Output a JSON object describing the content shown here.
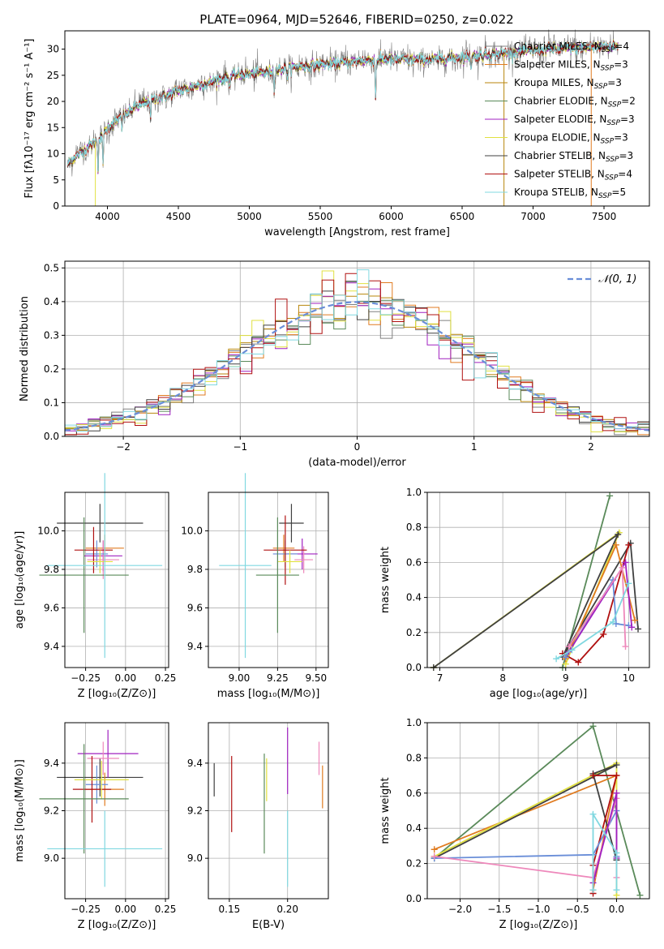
{
  "chart_data": [
    {
      "id": "spectrum",
      "type": "line",
      "title": "PLATE=0964, MJD=52646, FIBERID=0250, z=0.022",
      "xlabel": "wavelength [Angstrom, rest frame]",
      "ylabel": "Flux [fλ10⁻¹⁷ erg cm⁻² s⁻¹ A⁻¹]",
      "xlim": [
        3700,
        7820
      ],
      "ylim": [
        0,
        33.5
      ],
      "xticks": [
        4000,
        4500,
        5000,
        5500,
        6000,
        6500,
        7000,
        7500
      ],
      "yticks": [
        0,
        5,
        10,
        15,
        20,
        25,
        30
      ],
      "grid": false,
      "legend_position": "top-right",
      "continuum": [
        [
          3720,
          8
        ],
        [
          3800,
          10
        ],
        [
          3900,
          12
        ],
        [
          3960,
          13
        ],
        [
          4000,
          15
        ],
        [
          4100,
          17
        ],
        [
          4200,
          19
        ],
        [
          4300,
          20
        ],
        [
          4400,
          21
        ],
        [
          4500,
          22
        ],
        [
          4700,
          23.5
        ],
        [
          4900,
          25
        ],
        [
          5100,
          25.5
        ],
        [
          5300,
          26.5
        ],
        [
          5500,
          27
        ],
        [
          5700,
          27.5
        ],
        [
          5900,
          28
        ],
        [
          6100,
          28
        ],
        [
          6300,
          28
        ],
        [
          6500,
          28.5
        ],
        [
          6700,
          29
        ],
        [
          6900,
          29.5
        ],
        [
          7100,
          30
        ],
        [
          7300,
          30.2
        ],
        [
          7500,
          30.5
        ],
        [
          7600,
          30.5
        ]
      ],
      "series": [
        {
          "name": "Chabrier MILES, N_SSP=4",
          "label": "Chabrier MILES, N",
          "nssp": 4,
          "color": "#808080"
        },
        {
          "name": "Salpeter MILES, N_SSP=3",
          "label": "Salpeter MILES, N",
          "nssp": 3,
          "color": "#e07b20"
        },
        {
          "name": "Kroupa MILES, N_SSP=3",
          "label": "Kroupa MILES, N",
          "nssp": 3,
          "color": "#b8860b"
        },
        {
          "name": "Chabrier ELODIE, N_SSP=2",
          "label": "Chabrier ELODIE, N",
          "nssp": 2,
          "color": "#5a8a5a"
        },
        {
          "name": "Salpeter ELODIE, N_SSP=3",
          "label": "Salpeter ELODIE, N",
          "nssp": 3,
          "color": "#a020c0"
        },
        {
          "name": "Kroupa ELODIE, N_SSP=3",
          "label": "Kroupa ELODIE, N",
          "nssp": 3,
          "color": "#e0e040"
        },
        {
          "name": "Chabrier STELIB, N_SSP=3",
          "label": "Chabrier STELIB, N",
          "nssp": 3,
          "color": "#404040"
        },
        {
          "name": "Salpeter STELIB, N_SSP=4",
          "label": "Salpeter STELIB, N",
          "nssp": 4,
          "color": "#b01010"
        },
        {
          "name": "Kroupa STELIB, N_SSP=5",
          "label": "Kroupa STELIB, N",
          "nssp": 5,
          "color": "#80d8e0"
        }
      ],
      "legend_suffix": "SSP"
    },
    {
      "id": "residuals",
      "type": "line",
      "xlabel": "(data-model)/error",
      "ylabel": "Normed distribution",
      "xlim": [
        -2.5,
        2.5
      ],
      "ylim": [
        0,
        0.52
      ],
      "xticks": [
        -2,
        -1,
        0,
        1,
        2
      ],
      "yticks": [
        0.0,
        0.1,
        0.2,
        0.3,
        0.4,
        0.5
      ],
      "grid": true,
      "legend_position": "top-right",
      "legend": "𝒩(0, 1)",
      "bin_width": 0.1,
      "gauss_color": "#6a8ed8"
    },
    {
      "id": "age-vs-Z",
      "type": "scatter",
      "xlabel": "Z [log₁₀(Z/Z⊙)]",
      "ylabel": "age  [log₁₀(age/yr)]",
      "xlim": [
        -0.38,
        0.27
      ],
      "ylim": [
        9.29,
        10.2
      ],
      "xticks": [
        -0.25,
        0.0,
        0.25
      ],
      "yticks": [
        9.4,
        9.6,
        9.8,
        10.0
      ],
      "grid": true,
      "points": [
        {
          "x": -0.16,
          "y": 10.04,
          "xerr": 0.27,
          "yerr": 0.1,
          "color": "#404040"
        },
        {
          "x": -0.13,
          "y": 9.91,
          "xerr": 0.12,
          "yerr": 0.07,
          "color": "#e07b20"
        },
        {
          "x": -0.14,
          "y": 9.87,
          "xerr": 0.12,
          "yerr": 0.08,
          "color": "#a020c0"
        },
        {
          "x": -0.14,
          "y": 9.85,
          "xerr": 0.1,
          "yerr": 0.1,
          "color": "#ee88bb"
        },
        {
          "x": -0.18,
          "y": 9.88,
          "xerr": 0.07,
          "yerr": 0.07,
          "color": "#6a8ed8"
        },
        {
          "x": -0.2,
          "y": 9.9,
          "xerr": 0.12,
          "yerr": 0.12,
          "color": "#b01010"
        },
        {
          "x": -0.16,
          "y": 9.84,
          "xerr": 0.08,
          "yerr": 0.06,
          "color": "#e0e040"
        },
        {
          "x": -0.26,
          "y": 9.77,
          "xerr": 0.28,
          "yerr": 0.3,
          "color": "#5a8a5a"
        },
        {
          "x": -0.13,
          "y": 9.82,
          "xerr": 0.36,
          "yerr": 0.48,
          "color": "#80d8e0"
        }
      ]
    },
    {
      "id": "age-vs-mass",
      "type": "scatter",
      "xlabel": "mass [log₁₀(M/M⊙)]",
      "ylabel": "",
      "xlim": [
        8.8,
        9.58
      ],
      "ylim": [
        9.29,
        10.2
      ],
      "xticks": [
        9.0,
        9.25,
        9.5
      ],
      "yticks": [
        9.4,
        9.6,
        9.8,
        10.0
      ],
      "grid": true,
      "points": [
        {
          "x": 9.34,
          "y": 10.04,
          "xerr": 0.08,
          "yerr": 0.1,
          "color": "#404040"
        },
        {
          "x": 9.29,
          "y": 9.91,
          "xerr": 0.07,
          "yerr": 0.07,
          "color": "#e07b20"
        },
        {
          "x": 9.41,
          "y": 9.88,
          "xerr": 0.1,
          "yerr": 0.08,
          "color": "#a020c0"
        },
        {
          "x": 9.42,
          "y": 9.85,
          "xerr": 0.06,
          "yerr": 0.07,
          "color": "#ee88bb"
        },
        {
          "x": 9.3,
          "y": 9.88,
          "xerr": 0.08,
          "yerr": 0.07,
          "color": "#6a8ed8"
        },
        {
          "x": 9.3,
          "y": 9.9,
          "xerr": 0.14,
          "yerr": 0.18,
          "color": "#b01010"
        },
        {
          "x": 9.33,
          "y": 9.84,
          "xerr": 0.08,
          "yerr": 0.06,
          "color": "#e0e040"
        },
        {
          "x": 9.25,
          "y": 9.77,
          "xerr": 0.14,
          "yerr": 0.3,
          "color": "#5a8a5a"
        },
        {
          "x": 9.04,
          "y": 9.82,
          "xerr": 0.17,
          "yerr": 0.48,
          "color": "#80d8e0"
        }
      ]
    },
    {
      "id": "weight-vs-age",
      "type": "line",
      "xlabel": "age  [log₁₀(age/yr)]",
      "ylabel": "mass weight",
      "xlim": [
        6.8,
        10.33
      ],
      "ylim": [
        0,
        1.0
      ],
      "xticks": [
        7,
        8,
        9,
        10
      ],
      "yticks": [
        0.0,
        0.2,
        0.4,
        0.6,
        0.8,
        1.0
      ],
      "grid": true,
      "series": [
        {
          "color": "#5a8a5a",
          "points": [
            [
              8.95,
              0.0
            ],
            [
              9.7,
              0.98
            ]
          ]
        },
        {
          "color": "#e0e040",
          "points": [
            [
              6.9,
              0.0
            ],
            [
              9.85,
              0.77
            ],
            [
              9.0,
              0.02
            ]
          ]
        },
        {
          "color": "#404040",
          "points": [
            [
              6.9,
              0.0
            ],
            [
              9.83,
              0.76
            ],
            [
              8.95,
              0.06
            ],
            [
              10.03,
              0.71
            ],
            [
              10.15,
              0.22
            ]
          ]
        },
        {
          "color": "#e07b20",
          "points": [
            [
              9.0,
              0.05
            ],
            [
              9.8,
              0.7
            ],
            [
              10.1,
              0.27
            ]
          ]
        },
        {
          "color": "#b01010",
          "points": [
            [
              8.95,
              0.08
            ],
            [
              9.2,
              0.03
            ],
            [
              9.6,
              0.19
            ],
            [
              10.0,
              0.7
            ]
          ]
        },
        {
          "color": "#6a8ed8",
          "points": [
            [
              9.0,
              0.06
            ],
            [
              9.75,
              0.5
            ],
            [
              9.8,
              0.25
            ],
            [
              10.0,
              0.24
            ]
          ]
        },
        {
          "color": "#a020c0",
          "points": [
            [
              9.05,
              0.09
            ],
            [
              9.95,
              0.6
            ],
            [
              10.05,
              0.23
            ]
          ]
        },
        {
          "color": "#ee88bb",
          "points": [
            [
              9.05,
              0.12
            ],
            [
              9.9,
              0.57
            ],
            [
              9.95,
              0.12
            ]
          ]
        },
        {
          "color": "#80d8e0",
          "points": [
            [
              8.85,
              0.05
            ],
            [
              9.1,
              0.1
            ],
            [
              9.75,
              0.26
            ],
            [
              10.0,
              0.48
            ]
          ]
        }
      ]
    },
    {
      "id": "mass-vs-Z",
      "type": "scatter",
      "xlabel": "Z [log₁₀(Z/Z⊙)]",
      "ylabel": "mass [log₁₀(M/M⊙)]",
      "xlim": [
        -0.38,
        0.27
      ],
      "ylim": [
        8.83,
        9.57
      ],
      "xticks": [
        -0.25,
        0.0,
        0.25
      ],
      "yticks": [
        9.0,
        9.2,
        9.4
      ],
      "grid": true,
      "points": [
        {
          "x": -0.16,
          "y": 9.34,
          "xerr": 0.27,
          "yerr": 0.08,
          "color": "#404040"
        },
        {
          "x": -0.13,
          "y": 9.29,
          "xerr": 0.12,
          "yerr": 0.07,
          "color": "#e07b20"
        },
        {
          "x": -0.11,
          "y": 9.44,
          "xerr": 0.19,
          "yerr": 0.1,
          "color": "#a020c0"
        },
        {
          "x": -0.14,
          "y": 9.42,
          "xerr": 0.1,
          "yerr": 0.07,
          "color": "#ee88bb"
        },
        {
          "x": -0.18,
          "y": 9.31,
          "xerr": 0.07,
          "yerr": 0.08,
          "color": "#6a8ed8"
        },
        {
          "x": -0.21,
          "y": 9.29,
          "xerr": 0.12,
          "yerr": 0.14,
          "color": "#b01010"
        },
        {
          "x": -0.15,
          "y": 9.33,
          "xerr": 0.17,
          "yerr": 0.08,
          "color": "#e0e040"
        },
        {
          "x": -0.26,
          "y": 9.25,
          "xerr": 0.28,
          "yerr": 0.23,
          "color": "#5a8a5a"
        },
        {
          "x": -0.13,
          "y": 9.04,
          "xerr": 0.36,
          "yerr": 0.16,
          "color": "#80d8e0"
        }
      ]
    },
    {
      "id": "mass-vs-EBV",
      "type": "scatter",
      "xlabel": "E(B-V)",
      "ylabel": "",
      "xlim": [
        0.132,
        0.235
      ],
      "ylim": [
        8.83,
        9.57
      ],
      "xticks": [
        0.15,
        0.2
      ],
      "yticks": [
        9.0,
        9.2,
        9.4
      ],
      "grid": true,
      "points": [
        {
          "x": 0.137,
          "y": 9.33,
          "xerr": 0,
          "yerr": 0.07,
          "color": "#404040"
        },
        {
          "x": 0.152,
          "y": 9.27,
          "xerr": 0,
          "yerr": 0.16,
          "color": "#b01010"
        },
        {
          "x": 0.18,
          "y": 9.23,
          "xerr": 0,
          "yerr": 0.21,
          "color": "#5a8a5a"
        },
        {
          "x": 0.182,
          "y": 9.33,
          "xerr": 0,
          "yerr": 0.09,
          "color": "#e0e040"
        },
        {
          "x": 0.2,
          "y": 9.41,
          "xerr": 0,
          "yerr": 0.14,
          "color": "#a020c0"
        },
        {
          "x": 0.2,
          "y": 9.04,
          "xerr": 0,
          "yerr": 0.16,
          "color": "#80d8e0"
        },
        {
          "x": 0.227,
          "y": 9.42,
          "xerr": 0,
          "yerr": 0.07,
          "color": "#ee88bb"
        },
        {
          "x": 0.23,
          "y": 9.3,
          "xerr": 0,
          "yerr": 0.09,
          "color": "#e07b20"
        }
      ]
    },
    {
      "id": "weight-vs-Z",
      "type": "line",
      "xlabel": "Z [log₁₀(Z/Z⊙)]",
      "ylabel": "mass weight",
      "xlim": [
        -2.42,
        0.42
      ],
      "ylim": [
        0,
        1.0
      ],
      "xticks": [
        -2.0,
        -1.5,
        -1.0,
        -0.5,
        0.0
      ],
      "yticks": [
        0.0,
        0.2,
        0.4,
        0.6,
        0.8,
        1.0
      ],
      "grid": true,
      "series": [
        {
          "color": "#5a8a5a",
          "points": [
            [
              -2.33,
              0.23
            ],
            [
              -0.3,
              0.98
            ],
            [
              0.3,
              0.02
            ]
          ]
        },
        {
          "color": "#e07b20",
          "points": [
            [
              -2.33,
              0.28
            ],
            [
              0.0,
              0.7
            ],
            [
              -0.3,
              0.05
            ]
          ]
        },
        {
          "color": "#e0e040",
          "points": [
            [
              -2.33,
              0.24
            ],
            [
              0.0,
              0.77
            ],
            [
              0.0,
              0.02
            ]
          ]
        },
        {
          "color": "#404040",
          "points": [
            [
              -2.33,
              0.23
            ],
            [
              0.0,
              0.76
            ],
            [
              -0.3,
              0.71
            ],
            [
              0.0,
              0.22
            ]
          ]
        },
        {
          "color": "#b01010",
          "points": [
            [
              -0.3,
              0.03
            ],
            [
              -0.3,
              0.19
            ],
            [
              0.0,
              0.7
            ],
            [
              -0.3,
              0.7
            ]
          ]
        },
        {
          "color": "#6a8ed8",
          "points": [
            [
              -2.33,
              0.23
            ],
            [
              -0.3,
              0.25
            ],
            [
              0.0,
              0.5
            ],
            [
              0.0,
              0.24
            ]
          ]
        },
        {
          "color": "#ee88bb",
          "points": [
            [
              -2.33,
              0.24
            ],
            [
              -0.3,
              0.12
            ],
            [
              0.0,
              0.57
            ],
            [
              0.0,
              0.12
            ]
          ]
        },
        {
          "color": "#a020c0",
          "points": [
            [
              -0.3,
              0.09
            ],
            [
              0.0,
              0.6
            ],
            [
              0.0,
              0.23
            ]
          ]
        },
        {
          "color": "#80d8e0",
          "points": [
            [
              -0.3,
              0.05
            ],
            [
              -0.3,
              0.48
            ],
            [
              0.0,
              0.26
            ],
            [
              0.0,
              0.05
            ]
          ]
        }
      ]
    }
  ]
}
